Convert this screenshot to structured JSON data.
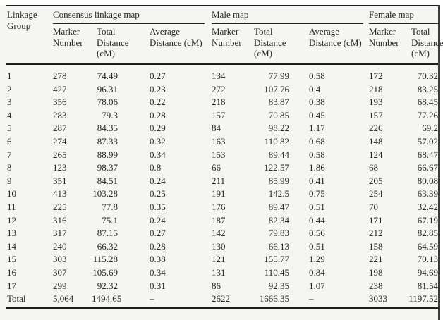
{
  "table": {
    "corner_header": "Linkage Group",
    "groups": [
      {
        "label": "Consensus linkage map"
      },
      {
        "label": "Male map"
      },
      {
        "label": "Female map"
      }
    ],
    "subheaders": [
      "Marker Number",
      "Total Distance (cM)",
      "Average Distance (cM)",
      "Marker Number",
      "Total Distance (cM)",
      "Average Distance (cM)",
      "Marker Number",
      "Total Distance (cM)"
    ],
    "rows": [
      [
        "1",
        "278",
        "74.49",
        "0.27",
        "134",
        "77.99",
        "0.58",
        "172",
        "70.32"
      ],
      [
        "2",
        "427",
        "96.31",
        "0.23",
        "272",
        "107.76",
        "0.4",
        "218",
        "83.25"
      ],
      [
        "3",
        "356",
        "78.06",
        "0.22",
        "218",
        "83.87",
        "0.38",
        "193",
        "68.45"
      ],
      [
        "4",
        "283",
        "79.3",
        "0.28",
        "157",
        "70.85",
        "0.45",
        "157",
        "77.26"
      ],
      [
        "5",
        "287",
        "84.35",
        "0.29",
        "84",
        "98.22",
        "1.17",
        "226",
        "69.2"
      ],
      [
        "6",
        "274",
        "87.33",
        "0.32",
        "163",
        "110.82",
        "0.68",
        "148",
        "57.02"
      ],
      [
        "7",
        "265",
        "88.99",
        "0.34",
        "153",
        "89.44",
        "0.58",
        "124",
        "68.47"
      ],
      [
        "8",
        "123",
        "98.37",
        "0.8",
        "66",
        "122.57",
        "1.86",
        "68",
        "66.67"
      ],
      [
        "9",
        "351",
        "84.51",
        "0.24",
        "211",
        "85.99",
        "0.41",
        "205",
        "80.08"
      ],
      [
        "10",
        "413",
        "103.28",
        "0.25",
        "191",
        "142.5",
        "0.75",
        "254",
        "63.39"
      ],
      [
        "11",
        "225",
        "77.8",
        "0.35",
        "176",
        "89.47",
        "0.51",
        "70",
        "32.42"
      ],
      [
        "12",
        "316",
        "75.1",
        "0.24",
        "187",
        "82.34",
        "0.44",
        "171",
        "67.19"
      ],
      [
        "13",
        "317",
        "87.15",
        "0.27",
        "142",
        "79.83",
        "0.56",
        "212",
        "82.85"
      ],
      [
        "14",
        "240",
        "66.32",
        "0.28",
        "130",
        "66.13",
        "0.51",
        "158",
        "64.59"
      ],
      [
        "15",
        "303",
        "115.28",
        "0.38",
        "121",
        "155.77",
        "1.29",
        "221",
        "70.13"
      ],
      [
        "16",
        "307",
        "105.69",
        "0.34",
        "131",
        "110.45",
        "0.84",
        "198",
        "94.69"
      ],
      [
        "17",
        "299",
        "92.32",
        "0.31",
        "86",
        "92.35",
        "1.07",
        "238",
        "81.54"
      ],
      [
        "Total",
        "5,064",
        "1494.65",
        "–",
        "2622",
        "1666.35",
        "–",
        "3033",
        "1197.52"
      ]
    ]
  }
}
